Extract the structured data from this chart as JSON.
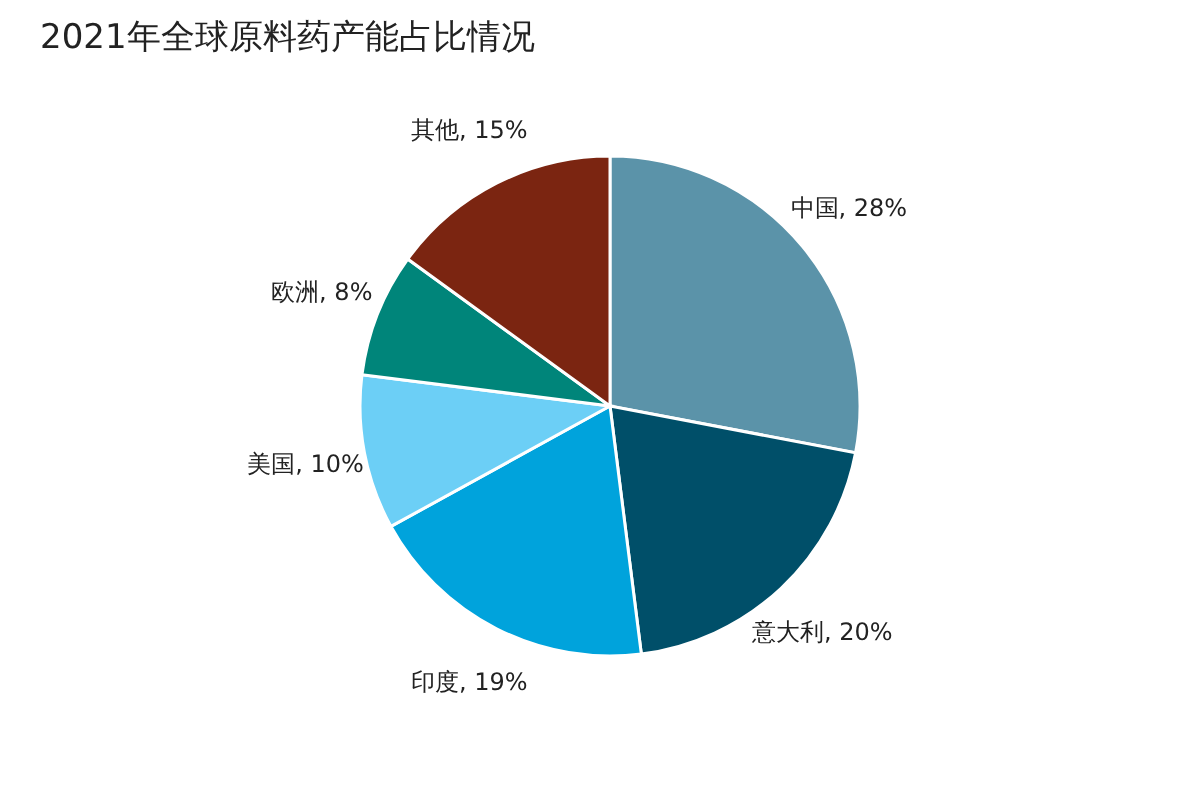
{
  "chart_data": {
    "type": "pie",
    "title": "2021年全球原料药产能占比情况",
    "categories": [
      "中国",
      "意大利",
      "印度",
      "美国",
      "欧洲",
      "其他"
    ],
    "values": [
      28,
      20,
      19,
      10,
      8,
      15
    ],
    "value_labels": [
      "28%",
      "20%",
      "19%",
      "10%",
      "8%",
      "15%"
    ],
    "colors": [
      "#5b93a9",
      "#004f69",
      "#00a3dc",
      "#6ccff6",
      "#00857a",
      "#7b2511"
    ],
    "legend": false
  }
}
